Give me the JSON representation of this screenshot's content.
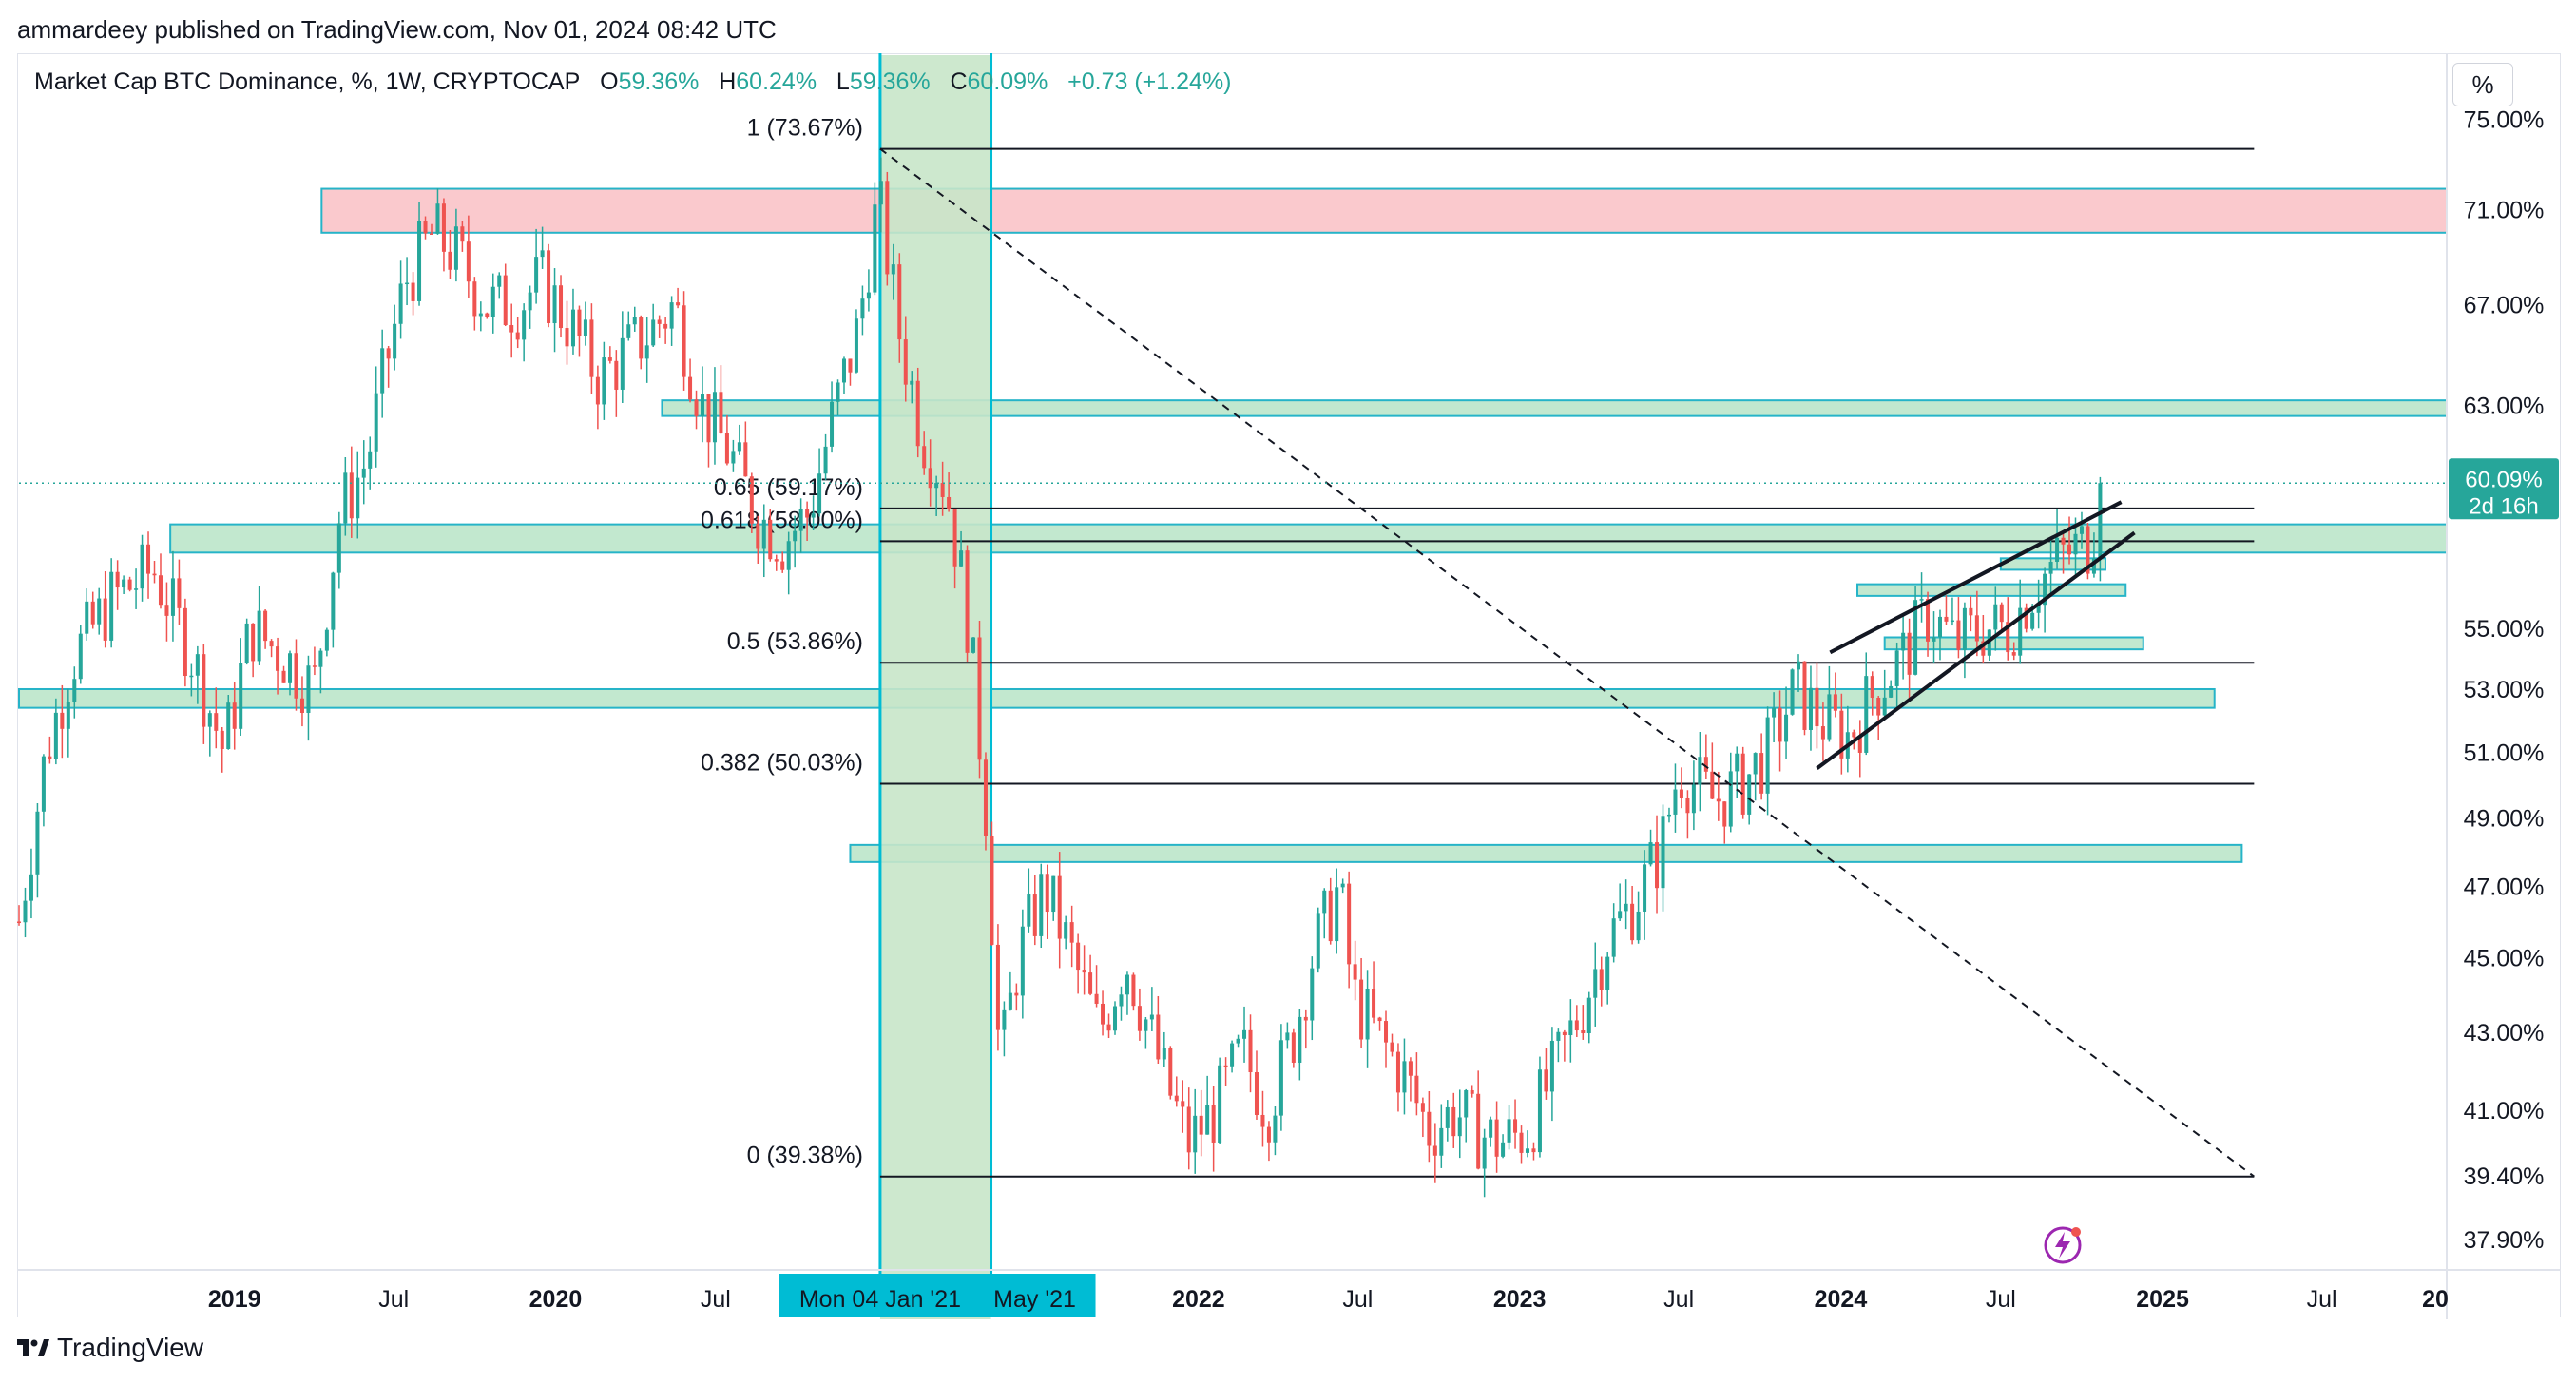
{
  "header": {
    "publisher_line": "ammardeey published on TradingView.com, Nov 01, 2024 08:42 UTC"
  },
  "legend": {
    "symbol": "Market Cap BTC Dominance, %, 1W, CRYPTOCAP",
    "o_label": "O",
    "o_value": "59.36%",
    "h_label": "H",
    "h_value": "60.24%",
    "l_label": "L",
    "l_value": "59.36%",
    "c_label": "C",
    "c_value": "60.09%",
    "change": "+0.73 (+1.24%)"
  },
  "unit_button": "%",
  "price_badge": {
    "value": "60.09%",
    "countdown": "2d 16h",
    "color": "#26a69a"
  },
  "footer": {
    "brand": "TradingView"
  },
  "colors": {
    "up": "#26a69a",
    "down": "#ef5350",
    "zone_green": "#b7e4c7",
    "zone_red": "#f9c0c4",
    "zone_border": "#26b4c8",
    "crosshair": "#00bcd4"
  },
  "chart_data": {
    "type": "candlestick",
    "title": "Market Cap BTC Dominance, %, 1W, CRYPTOCAP",
    "scale": "log",
    "ylim": [
      37.2,
      78.0
    ],
    "xlim": [
      "2018-05-01",
      "2025-11-20"
    ],
    "y_ticks": [
      "75.00%",
      "71.00%",
      "67.00%",
      "63.00%",
      "55.00%",
      "53.00%",
      "51.00%",
      "49.00%",
      "47.00%",
      "45.00%",
      "43.00%",
      "41.00%",
      "39.40%",
      "37.90%"
    ],
    "y_tick_values": [
      75.0,
      71.0,
      67.0,
      63.0,
      55.0,
      53.0,
      51.0,
      49.0,
      47.0,
      45.0,
      43.0,
      41.0,
      39.4,
      37.9
    ],
    "x_ticks": [
      {
        "label": "2019",
        "date": "2019-01-01",
        "bold": true
      },
      {
        "label": "Jul",
        "date": "2019-07-01",
        "bold": false
      },
      {
        "label": "2020",
        "date": "2020-01-01",
        "bold": true
      },
      {
        "label": "Jul",
        "date": "2020-07-01",
        "bold": false
      },
      {
        "label": "2022",
        "date": "2022-01-01",
        "bold": true
      },
      {
        "label": "Jul",
        "date": "2022-07-01",
        "bold": false
      },
      {
        "label": "2023",
        "date": "2023-01-01",
        "bold": true
      },
      {
        "label": "Jul",
        "date": "2023-07-01",
        "bold": false
      },
      {
        "label": "2024",
        "date": "2024-01-01",
        "bold": true
      },
      {
        "label": "Jul",
        "date": "2024-07-01",
        "bold": false
      },
      {
        "label": "2025",
        "date": "2025-01-01",
        "bold": true
      },
      {
        "label": "Jul",
        "date": "2025-07-01",
        "bold": false
      },
      {
        "label": "20",
        "date": "2025-12-31",
        "bold": true
      }
    ],
    "x_highlight_labels": [
      {
        "label": "Mon 04 Jan '21",
        "date": "2021-01-04"
      },
      {
        "label": "May '21",
        "date": "2021-05-10"
      }
    ],
    "price_path": [
      [
        "2018-05-01",
        46
      ],
      [
        "2018-06-01",
        51
      ],
      [
        "2018-07-01",
        54
      ],
      [
        "2018-08-15",
        56
      ],
      [
        "2018-10-01",
        57
      ],
      [
        "2018-11-15",
        54
      ],
      [
        "2018-12-20",
        51
      ],
      [
        "2019-01-20",
        55
      ],
      [
        "2019-03-01",
        54
      ],
      [
        "2019-04-01",
        53
      ],
      [
        "2019-05-01",
        59
      ],
      [
        "2019-06-01",
        61
      ],
      [
        "2019-06-25",
        65
      ],
      [
        "2019-07-15",
        68
      ],
      [
        "2019-08-15",
        70
      ],
      [
        "2019-09-10",
        69
      ],
      [
        "2019-10-15",
        67
      ],
      [
        "2019-11-20",
        67
      ],
      [
        "2019-12-15",
        68
      ],
      [
        "2020-01-20",
        66
      ],
      [
        "2020-02-20",
        64
      ],
      [
        "2020-03-20",
        65
      ],
      [
        "2020-04-20",
        66
      ],
      [
        "2020-05-15",
        67
      ],
      [
        "2020-06-15",
        63
      ],
      [
        "2020-07-20",
        61
      ],
      [
        "2020-08-15",
        59
      ],
      [
        "2020-09-15",
        58
      ],
      [
        "2020-10-15",
        59
      ],
      [
        "2020-11-15",
        63
      ],
      [
        "2020-12-10",
        66
      ],
      [
        "2020-12-28",
        70.5
      ],
      [
        "2021-01-04",
        71
      ],
      [
        "2021-01-25",
        66
      ],
      [
        "2021-02-20",
        62
      ],
      [
        "2021-03-20",
        60
      ],
      [
        "2021-04-15",
        55
      ],
      [
        "2021-05-05",
        49
      ],
      [
        "2021-05-20",
        42
      ],
      [
        "2021-06-10",
        45
      ],
      [
        "2021-07-10",
        47
      ],
      [
        "2021-08-10",
        45
      ],
      [
        "2021-09-10",
        43
      ],
      [
        "2021-10-10",
        45
      ],
      [
        "2021-11-20",
        42
      ],
      [
        "2021-12-20",
        40.2
      ],
      [
        "2022-01-20",
        41
      ],
      [
        "2022-02-20",
        42.5
      ],
      [
        "2022-03-20",
        41
      ],
      [
        "2022-04-20",
        43
      ],
      [
        "2022-05-10",
        45
      ],
      [
        "2022-06-10",
        47
      ],
      [
        "2022-06-25",
        44
      ],
      [
        "2022-07-20",
        43
      ],
      [
        "2022-08-20",
        42
      ],
      [
        "2022-09-20",
        40.5
      ],
      [
        "2022-10-20",
        41
      ],
      [
        "2022-11-10",
        40.5
      ],
      [
        "2022-12-10",
        40.2
      ],
      [
        "2023-01-10",
        40.5
      ],
      [
        "2023-02-10",
        42
      ],
      [
        "2023-03-10",
        43.5
      ],
      [
        "2023-04-10",
        45.5
      ],
      [
        "2023-05-10",
        46.5
      ],
      [
        "2023-06-10",
        48
      ],
      [
        "2023-07-01",
        50.5
      ],
      [
        "2023-07-20",
        50
      ],
      [
        "2023-08-10",
        49.5
      ],
      [
        "2023-09-10",
        50
      ],
      [
        "2023-10-10",
        51
      ],
      [
        "2023-11-10",
        53
      ],
      [
        "2023-12-10",
        52
      ],
      [
        "2024-01-10",
        51.5
      ],
      [
        "2024-02-10",
        53
      ],
      [
        "2024-03-10",
        54
      ],
      [
        "2024-04-10",
        55.5
      ],
      [
        "2024-05-10",
        54.5
      ],
      [
        "2024-06-10",
        55
      ],
      [
        "2024-07-10",
        55
      ],
      [
        "2024-08-10",
        56.5
      ],
      [
        "2024-09-10",
        57.5
      ],
      [
        "2024-10-10",
        58
      ],
      [
        "2024-10-28",
        60.09
      ]
    ],
    "last_price": 60.09,
    "fib_levels": [
      {
        "label": "1 (73.67%)",
        "value": 73.67
      },
      {
        "label": "0.65 (59.17%)",
        "value": 59.17
      },
      {
        "label": "0.618 (58.00%)",
        "value": 58.0
      },
      {
        "label": "0.5 (53.86%)",
        "value": 53.86
      },
      {
        "label": "0.382 (50.03%)",
        "value": 50.03
      },
      {
        "label": "0 (39.38%)",
        "value": 39.38
      }
    ],
    "fib_extend_to": "2025-04-15",
    "fib_start": "2021-01-04",
    "trend_line_dashed": {
      "from": [
        "2021-01-04",
        73.67
      ],
      "to": [
        "2025-04-15",
        39.38
      ]
    },
    "zones": [
      {
        "from": "2019-04-10",
        "to": "2025-11-20",
        "low": 70.0,
        "high": 71.9,
        "kind": "red"
      },
      {
        "from": "2020-05-01",
        "to": "2025-11-20",
        "low": 62.6,
        "high": 63.2,
        "kind": "green"
      },
      {
        "from": "2018-10-20",
        "to": "2025-11-20",
        "low": 57.6,
        "high": 58.6,
        "kind": "green"
      },
      {
        "from": "2018-05-01",
        "to": "2025-03-01",
        "low": 52.4,
        "high": 53.0,
        "kind": "green"
      },
      {
        "from": "2020-12-01",
        "to": "2025-04-01",
        "low": 47.7,
        "high": 48.2,
        "kind": "green"
      },
      {
        "from": "2024-01-20",
        "to": "2024-11-20",
        "low": 56.1,
        "high": 56.5,
        "kind": "green"
      },
      {
        "from": "2024-02-20",
        "to": "2024-12-10",
        "low": 54.3,
        "high": 54.7,
        "kind": "green"
      },
      {
        "from": "2024-07-01",
        "to": "2024-10-28",
        "low": 57.0,
        "high": 57.4,
        "kind": "green"
      }
    ],
    "vertical_range": {
      "from": "2021-01-04",
      "to": "2021-05-10"
    },
    "channel_lines": [
      {
        "from": [
          "2023-12-20",
          54.2
        ],
        "to": [
          "2024-11-15",
          59.4
        ]
      },
      {
        "from": [
          "2023-12-05",
          50.5
        ],
        "to": [
          "2024-11-30",
          58.3
        ]
      }
    ]
  }
}
